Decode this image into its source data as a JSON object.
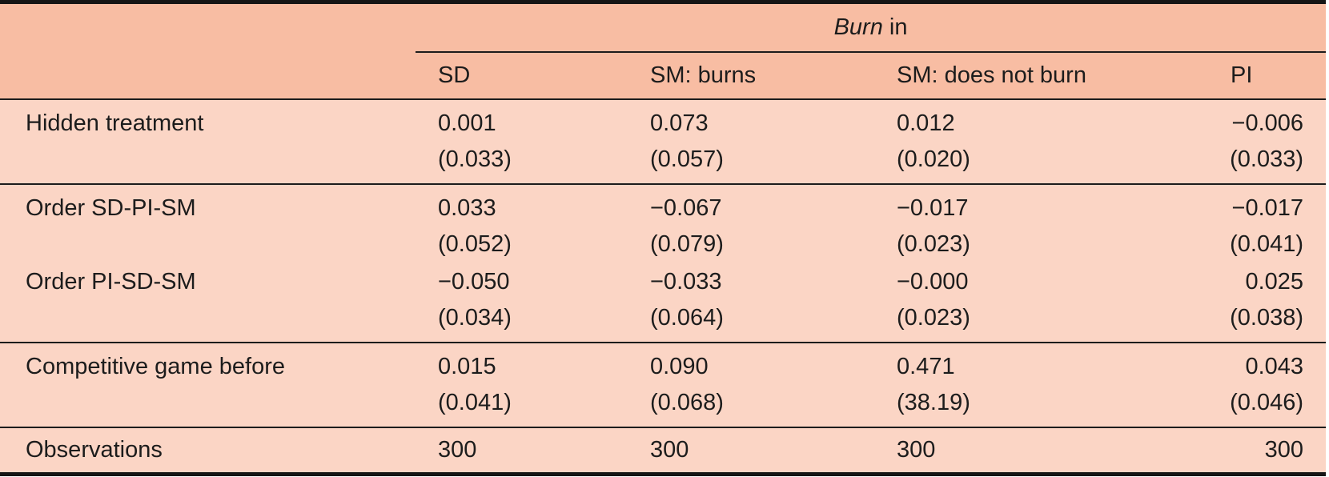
{
  "table": {
    "title": {
      "spanner_italic": "Burn",
      "spanner_rest": " in"
    },
    "column_headers": {
      "sd": "SD",
      "sm_burns": "SM: burns",
      "sm_no_burn": "SM: does not burn",
      "pi": "PI"
    },
    "rows": {
      "hidden_treatment": {
        "label": "Hidden treatment",
        "sd": "0.001",
        "sd_se": "(0.033)",
        "smb": "0.073",
        "smb_se": "(0.057)",
        "smnb": "0.012",
        "smnb_se": "(0.020)",
        "pi": "−0.006",
        "pi_se": "(0.033)"
      },
      "order_sd_pi_sm": {
        "label": "Order SD-PI-SM",
        "sd": "0.033",
        "sd_se": "(0.052)",
        "smb": "−0.067",
        "smb_se": "(0.079)",
        "smnb": "−0.017",
        "smnb_se": "(0.023)",
        "pi": "−0.017",
        "pi_se": "(0.041)"
      },
      "order_pi_sd_sm": {
        "label": "Order PI-SD-SM",
        "sd": "−0.050",
        "sd_se": "(0.034)",
        "smb": "−0.033",
        "smb_se": "(0.064)",
        "smnb": "−0.000",
        "smnb_se": "(0.023)",
        "pi": "0.025",
        "pi_se": "(0.038)"
      },
      "competitive_game_before": {
        "label": "Competitive game before",
        "sd": "0.015",
        "sd_se": "(0.041)",
        "smb": "0.090",
        "smb_se": "(0.068)",
        "smnb": "0.471",
        "smnb_se": "(38.19)",
        "pi": "0.043",
        "pi_se": "(0.046)"
      },
      "observations": {
        "label": "Observations",
        "sd": "300",
        "smb": "300",
        "smnb": "300",
        "pi": "300"
      }
    },
    "colors": {
      "header_bg": "#f8bda3",
      "body_bg": "#fbd5c5",
      "rule": "#1c1c1c"
    }
  }
}
